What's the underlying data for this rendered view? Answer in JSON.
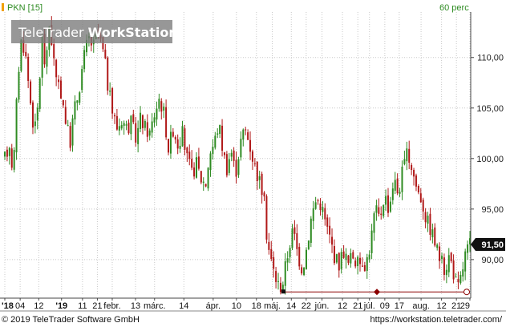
{
  "app": {
    "legend_symbol": "PKN [15]",
    "interval": "60 perc",
    "watermark_prefix": "TeleTrader",
    "watermark_suffix": "WorkStation",
    "copyright": "© 2019 TeleTrader Software GmbH",
    "url": "https://workstation.teletrader.com/",
    "price_tag": "91,50"
  },
  "colors": {
    "up": "#2e8b22",
    "down": "#b01818",
    "grid": "#c8c8c8",
    "axis": "#444444",
    "price_tag_bg": "#111111",
    "legend_marker": "#f0a000",
    "watermark_bg": "#777777",
    "range_line": "#8b0000"
  },
  "chart_data": {
    "type": "candlestick",
    "series_name": "PKN [15]",
    "ylim": [
      86.5,
      114.5
    ],
    "y_ticks": [
      "90,00",
      "95,00",
      "100,00",
      "105,00",
      "110,00"
    ],
    "y_tick_values": [
      90,
      95,
      100,
      105,
      110
    ],
    "x_ticks": [
      "'18",
      "04",
      "12",
      "'19",
      "11",
      "21",
      "febr.",
      "13",
      "márc.",
      "14",
      "ápr.",
      "10",
      "18",
      "máj.",
      "14",
      "22",
      "jún.",
      "12",
      "21",
      "júl.",
      "09",
      "17",
      "aug.",
      "12",
      "21",
      "29"
    ],
    "x_tick_positions": [
      0.0,
      0.033,
      0.073,
      0.122,
      0.167,
      0.199,
      0.231,
      0.281,
      0.322,
      0.385,
      0.448,
      0.498,
      0.541,
      0.575,
      0.616,
      0.648,
      0.682,
      0.726,
      0.759,
      0.784,
      0.817,
      0.848,
      0.895,
      0.939,
      0.971,
      1.0
    ],
    "last_price": 91.5,
    "range_line": {
      "y": 86.8,
      "x_from": 0.6,
      "x_to": 1.0
    },
    "close_path": [
      [
        0.0,
        100.0
      ],
      [
        0.01,
        101.5
      ],
      [
        0.018,
        98.5
      ],
      [
        0.028,
        108.0
      ],
      [
        0.036,
        112.0
      ],
      [
        0.044,
        110.5
      ],
      [
        0.052,
        107.0
      ],
      [
        0.058,
        104.5
      ],
      [
        0.064,
        102.5
      ],
      [
        0.072,
        105.5
      ],
      [
        0.08,
        112.0
      ],
      [
        0.088,
        108.5
      ],
      [
        0.096,
        113.5
      ],
      [
        0.106,
        109.5
      ],
      [
        0.112,
        107.0
      ],
      [
        0.122,
        106.5
      ],
      [
        0.13,
        104.0
      ],
      [
        0.14,
        101.5
      ],
      [
        0.148,
        104.5
      ],
      [
        0.158,
        106.5
      ],
      [
        0.17,
        110.0
      ],
      [
        0.18,
        112.0
      ],
      [
        0.19,
        111.0
      ],
      [
        0.198,
        112.5
      ],
      [
        0.206,
        111.5
      ],
      [
        0.214,
        110.0
      ],
      [
        0.222,
        107.0
      ],
      [
        0.232,
        104.5
      ],
      [
        0.242,
        103.0
      ],
      [
        0.252,
        104.0
      ],
      [
        0.262,
        103.0
      ],
      [
        0.272,
        103.5
      ],
      [
        0.282,
        102.0
      ],
      [
        0.292,
        104.0
      ],
      [
        0.302,
        103.0
      ],
      [
        0.312,
        102.5
      ],
      [
        0.322,
        104.5
      ],
      [
        0.332,
        106.0
      ],
      [
        0.342,
        104.5
      ],
      [
        0.352,
        101.0
      ],
      [
        0.362,
        103.0
      ],
      [
        0.372,
        101.5
      ],
      [
        0.382,
        102.5
      ],
      [
        0.392,
        100.0
      ],
      [
        0.402,
        98.5
      ],
      [
        0.412,
        99.5
      ],
      [
        0.422,
        98.0
      ],
      [
        0.432,
        97.5
      ],
      [
        0.44,
        100.5
      ],
      [
        0.45,
        101.5
      ],
      [
        0.46,
        103.5
      ],
      [
        0.47,
        100.5
      ],
      [
        0.478,
        99.0
      ],
      [
        0.486,
        101.0
      ],
      [
        0.496,
        98.5
      ],
      [
        0.506,
        101.5
      ],
      [
        0.516,
        103.0
      ],
      [
        0.526,
        101.5
      ],
      [
        0.536,
        99.5
      ],
      [
        0.546,
        98.0
      ],
      [
        0.556,
        96.5
      ],
      [
        0.564,
        92.0
      ],
      [
        0.572,
        90.0
      ],
      [
        0.58,
        88.5
      ],
      [
        0.588,
        87.5
      ],
      [
        0.596,
        87.3
      ],
      [
        0.604,
        89.5
      ],
      [
        0.612,
        91.5
      ],
      [
        0.62,
        93.0
      ],
      [
        0.63,
        90.5
      ],
      [
        0.64,
        89.0
      ],
      [
        0.65,
        91.5
      ],
      [
        0.66,
        94.5
      ],
      [
        0.67,
        96.0
      ],
      [
        0.68,
        95.5
      ],
      [
        0.69,
        93.5
      ],
      [
        0.7,
        92.0
      ],
      [
        0.708,
        90.5
      ],
      [
        0.718,
        89.5
      ],
      [
        0.728,
        91.0
      ],
      [
        0.738,
        89.5
      ],
      [
        0.748,
        90.5
      ],
      [
        0.758,
        89.5
      ],
      [
        0.768,
        90.0
      ],
      [
        0.776,
        89.5
      ],
      [
        0.786,
        91.5
      ],
      [
        0.796,
        95.0
      ],
      [
        0.806,
        94.0
      ],
      [
        0.816,
        96.5
      ],
      [
        0.826,
        95.0
      ],
      [
        0.836,
        98.0
      ],
      [
        0.846,
        96.5
      ],
      [
        0.856,
        99.0
      ],
      [
        0.866,
        100.5
      ],
      [
        0.876,
        99.0
      ],
      [
        0.886,
        97.0
      ],
      [
        0.896,
        96.0
      ],
      [
        0.906,
        94.0
      ],
      [
        0.916,
        93.0
      ],
      [
        0.926,
        91.5
      ],
      [
        0.936,
        90.0
      ],
      [
        0.946,
        89.0
      ],
      [
        0.956,
        90.5
      ],
      [
        0.966,
        88.5
      ],
      [
        0.974,
        87.0
      ],
      [
        0.982,
        88.5
      ],
      [
        0.99,
        90.5
      ],
      [
        1.0,
        91.5
      ]
    ]
  }
}
